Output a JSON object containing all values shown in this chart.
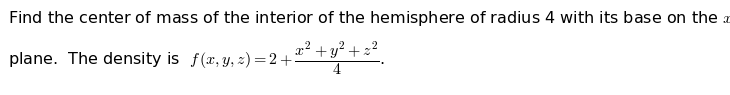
{
  "line1": "Find the center of mass of the interior of the hemisphere of radius 4 with its base on the $xy$-",
  "line2": "plane.  The density is  $f\\,(x, y, z) = 2 + \\dfrac{x^2 + y^2 + z^2}{4}$\\,.",
  "background_color": "#ffffff",
  "text_color": "#000000",
  "fontsize": 11.5,
  "fig_width": 7.3,
  "fig_height": 0.95,
  "dpi": 100
}
